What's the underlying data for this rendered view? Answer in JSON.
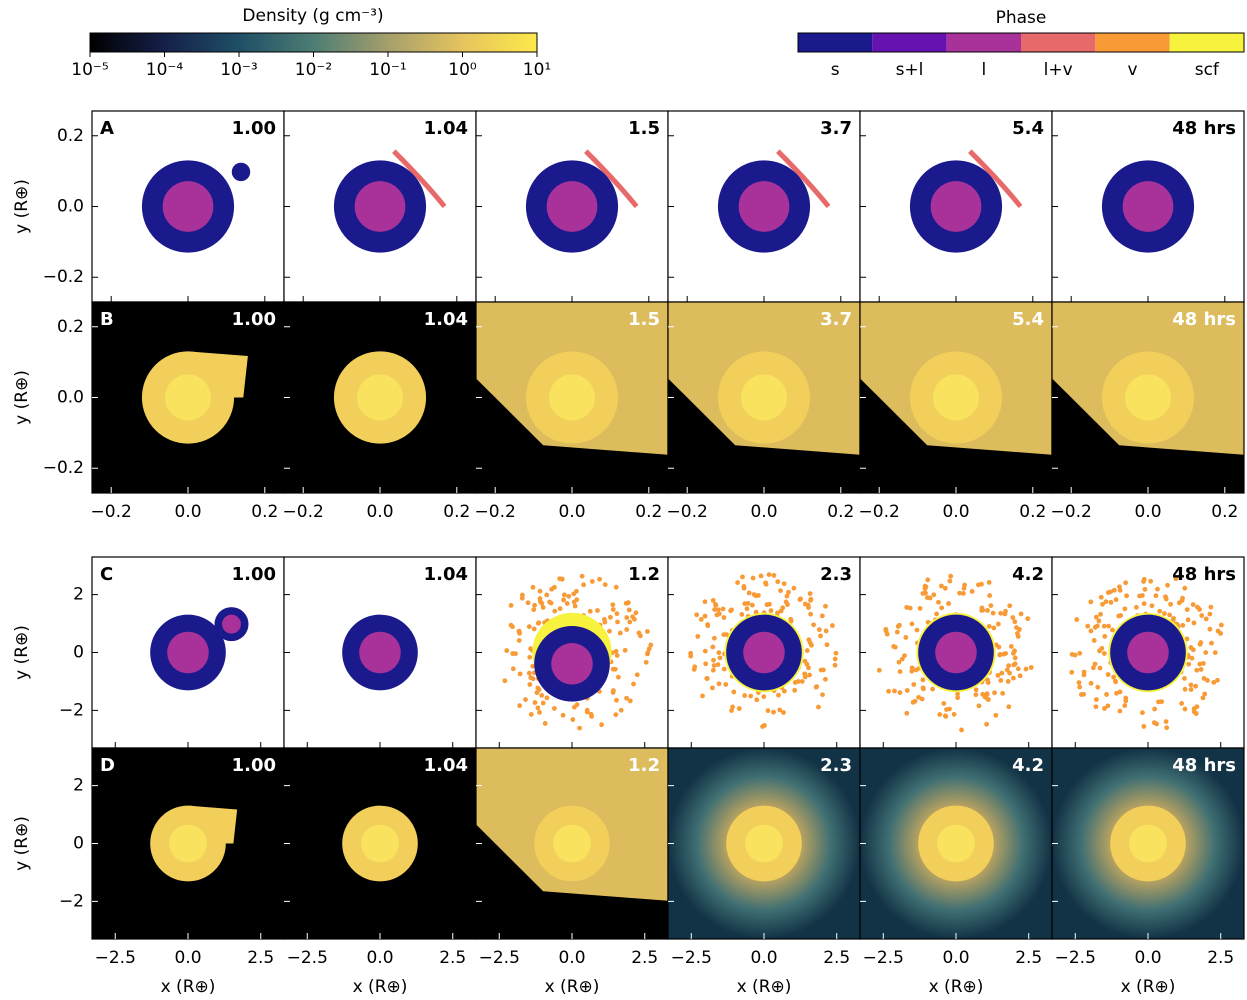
{
  "density_colorbar": {
    "label": "Density (g cm⁻³)",
    "log": true,
    "lim": [
      1e-05,
      10
    ],
    "colors": [
      "#000000",
      "#15204a",
      "#1f4f66",
      "#4d7d74",
      "#a59f6c",
      "#e6c45e",
      "#fde84a"
    ],
    "ticks": [
      {
        "value": 1e-05,
        "label": "10⁻⁵"
      },
      {
        "value": 0.0001,
        "label": "10⁻⁴"
      },
      {
        "value": 0.001,
        "label": "10⁻³"
      },
      {
        "value": 0.01,
        "label": "10⁻²"
      },
      {
        "value": 0.1,
        "label": "10⁻¹"
      },
      {
        "value": 1,
        "label": "10⁰"
      },
      {
        "value": 10,
        "label": "10¹"
      }
    ]
  },
  "phase_colorbar": {
    "label": "Phase",
    "categories": [
      "s",
      "s+l",
      "l",
      "l+v",
      "v",
      "scf"
    ],
    "colors": [
      "#1a1a8c",
      "#6612b0",
      "#a8329a",
      "#e8696a",
      "#f89a36",
      "#f6f23e"
    ]
  },
  "groups": [
    {
      "xlim": [
        -0.25,
        0.25
      ],
      "ylim": [
        -0.27,
        0.27
      ],
      "ylabel": "y (R⊕)",
      "xticks": [
        {
          "value": -0.2,
          "label": "−0.2"
        },
        {
          "value": 0,
          "label": "0.0"
        },
        0.2
      ],
      "yticks": [
        {
          "value": -0.2,
          "label": "−0.2"
        },
        {
          "value": 0,
          "label": "0.0"
        },
        0.2
      ],
      "rows": [
        {
          "panel": "A",
          "kind": "phase",
          "times": [
            "1.00",
            "1.04",
            "1.5",
            "3.7",
            "5.4",
            "48 hrs"
          ]
        },
        {
          "panel": "B",
          "kind": "density",
          "times": [
            "1.00",
            "1.04",
            "1.5",
            "3.7",
            "5.4",
            "48 hrs"
          ]
        }
      ]
    },
    {
      "xlim": [
        -3.3,
        3.3
      ],
      "ylim": [
        -3.3,
        3.3
      ],
      "ylabel": "y (R⊕)",
      "xlabel": "x (R⊕)",
      "xticks": [
        {
          "value": -2.5,
          "label": "−2.5"
        },
        {
          "value": 0,
          "label": "0.0"
        },
        2.5
      ],
      "yticks": [
        {
          "value": -2,
          "label": "−2"
        },
        0,
        2
      ],
      "rows": [
        {
          "panel": "C",
          "kind": "phase",
          "times": [
            "1.00",
            "1.04",
            "1.2",
            "2.3",
            "4.2",
            "48 hrs"
          ]
        },
        {
          "panel": "D",
          "kind": "density",
          "times": [
            "1.00",
            "1.04",
            "1.2",
            "2.3",
            "4.2",
            "48 hrs"
          ]
        }
      ]
    }
  ]
}
